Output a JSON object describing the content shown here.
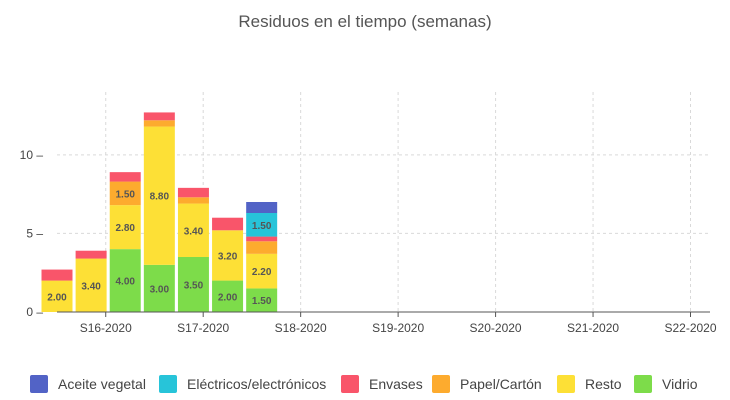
{
  "page": {
    "title": "Residuos en el tiempo (semanas)"
  },
  "chart_data": {
    "type": "bar",
    "stacked": true,
    "title": "Residuos en el tiempo (semanas)",
    "xlabel": "",
    "ylabel": "",
    "y_ticks": [
      0,
      5,
      10
    ],
    "ylim": [
      0,
      14
    ],
    "grid": true,
    "legend_position": "bottom",
    "x_ticks": [
      "S16-2020",
      "S17-2020",
      "S18-2020",
      "S19-2020",
      "S20-2020",
      "S21-2020",
      "S22-2020"
    ],
    "x_range_weeks": [
      15.5,
      22.2
    ],
    "bar_positions": [
      15.5,
      15.85,
      16.2,
      16.55,
      16.9,
      17.25,
      17.6
    ],
    "series": [
      {
        "name": "Vidrio",
        "color": "#7ddc4a",
        "values": [
          0,
          0,
          4.0,
          3.0,
          3.5,
          2.0,
          1.5
        ],
        "labels": [
          "",
          "",
          "4.00",
          "3.00",
          "3.50",
          "2.00",
          "1.50"
        ]
      },
      {
        "name": "Resto",
        "color": "#fde036",
        "values": [
          2.0,
          3.4,
          2.8,
          8.8,
          3.4,
          3.2,
          2.2
        ],
        "labels": [
          "2.00",
          "3.40",
          "2.80",
          "8.80",
          "3.40",
          "3.20",
          "2.20"
        ]
      },
      {
        "name": "Papel/Cartón",
        "color": "#fdab2e",
        "values": [
          0,
          0,
          1.5,
          0.4,
          0.4,
          0,
          0.8
        ],
        "labels": [
          "",
          "",
          "1.50",
          "",
          "",
          "",
          ""
        ]
      },
      {
        "name": "Envases",
        "color": "#f9556a",
        "values": [
          0.7,
          0.5,
          0.6,
          0.5,
          0.6,
          0.8,
          0.3
        ],
        "labels": [
          "",
          "",
          "",
          "",
          "",
          "",
          ""
        ]
      },
      {
        "name": "Eléctricos/electrónicos",
        "color": "#27c4d9",
        "values": [
          0,
          0,
          0,
          0,
          0,
          0,
          1.5
        ],
        "labels": [
          "",
          "",
          "",
          "",
          "",
          "",
          "1.50"
        ]
      },
      {
        "name": "Aceite vegetal",
        "color": "#5263c6",
        "values": [
          0,
          0,
          0,
          0,
          0,
          0,
          0.7
        ],
        "labels": [
          "",
          "",
          "",
          "",
          "",
          "",
          ""
        ]
      }
    ]
  },
  "legend": [
    {
      "label": "Aceite vegetal",
      "color": "#5263c6"
    },
    {
      "label": "Eléctricos/electrónicos",
      "color": "#27c4d9"
    },
    {
      "label": "Envases",
      "color": "#f9556a"
    },
    {
      "label": "Papel/Cartón",
      "color": "#fdab2e"
    },
    {
      "label": "Resto",
      "color": "#fde036"
    },
    {
      "label": "Vidrio",
      "color": "#7ddc4a"
    }
  ]
}
